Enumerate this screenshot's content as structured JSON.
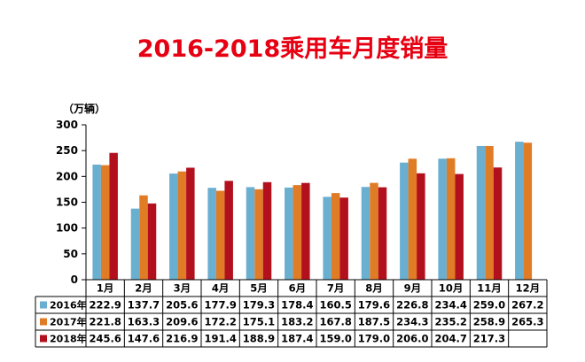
{
  "title": "2016-2018乘用车月度销量",
  "unit_label": "（万辆）",
  "chart_data": {
    "type": "bar",
    "title": "2016-2018乘用车月度销量",
    "ylabel": "（万辆）",
    "ylim": [
      0,
      300
    ],
    "yticks": [
      "0",
      "50",
      "100",
      "150",
      "200",
      "250",
      "300"
    ],
    "categories": [
      "1月",
      "2月",
      "3月",
      "4月",
      "5月",
      "6月",
      "7月",
      "8月",
      "9月",
      "10月",
      "11月",
      "12月"
    ],
    "grid": false,
    "legend": "data-table",
    "series": [
      {
        "name": "2016年",
        "color": "#6aaed0",
        "values": [
          222.9,
          137.7,
          205.6,
          177.9,
          179.3,
          178.4,
          160.5,
          179.6,
          226.8,
          234.4,
          259.0,
          267.2
        ],
        "labels": [
          "222.9",
          "137.7",
          "205.6",
          "177.9",
          "179.3",
          "178.4",
          "160.5",
          "179.6",
          "226.8",
          "234.4",
          "259.0",
          "267.2"
        ]
      },
      {
        "name": "2017年",
        "color": "#e07b26",
        "values": [
          221.8,
          163.3,
          209.6,
          172.2,
          175.1,
          183.2,
          167.8,
          187.5,
          234.3,
          235.2,
          258.9,
          265.3
        ],
        "labels": [
          "221.8",
          "163.3",
          "209.6",
          "172.2",
          "175.1",
          "183.2",
          "167.8",
          "187.5",
          "234.3",
          "235.2",
          "258.9",
          "265.3"
        ]
      },
      {
        "name": "2018年",
        "color": "#b3101d",
        "values": [
          245.6,
          147.6,
          216.9,
          191.4,
          188.9,
          187.4,
          159.0,
          179.0,
          206.0,
          204.7,
          217.3,
          null
        ],
        "labels": [
          "245.6",
          "147.6",
          "216.9",
          "191.4",
          "188.9",
          "187.4",
          "159.0",
          "179.0",
          "206.0",
          "204.7",
          "217.3",
          ""
        ]
      }
    ]
  }
}
